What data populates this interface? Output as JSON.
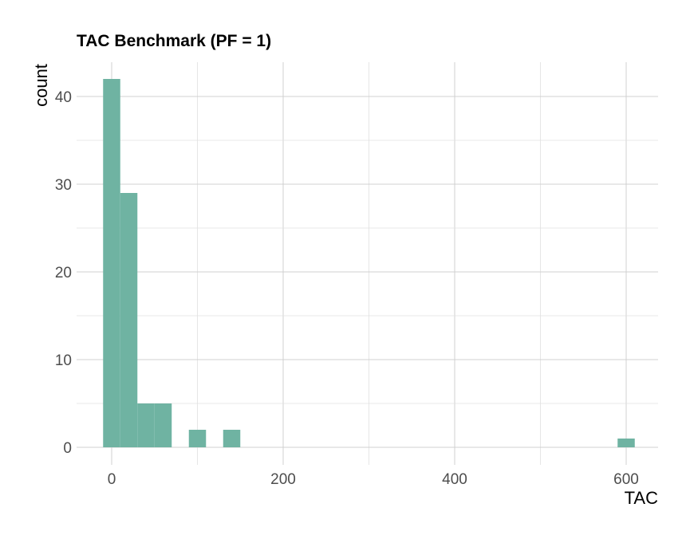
{
  "chart_data": {
    "type": "bar",
    "title": "TAC Benchmark (PF = 1)",
    "xlabel": "TAC",
    "ylabel": "count",
    "xlim": [
      -63,
      640
    ],
    "ylim": [
      0,
      44
    ],
    "x_ticks": [
      0,
      200,
      400,
      600
    ],
    "y_ticks": [
      0,
      10,
      20,
      30,
      40
    ],
    "grid": true,
    "bar_color": "#6fb3a2",
    "bins": [
      {
        "x0": -10,
        "x1": 10,
        "count": 42
      },
      {
        "x0": 10,
        "x1": 30,
        "count": 29
      },
      {
        "x0": 30,
        "x1": 50,
        "count": 5
      },
      {
        "x0": 50,
        "x1": 70,
        "count": 5
      },
      {
        "x0": 90,
        "x1": 110,
        "count": 2
      },
      {
        "x0": 130,
        "x1": 150,
        "count": 2
      },
      {
        "x0": 590,
        "x1": 610,
        "count": 1
      }
    ]
  }
}
